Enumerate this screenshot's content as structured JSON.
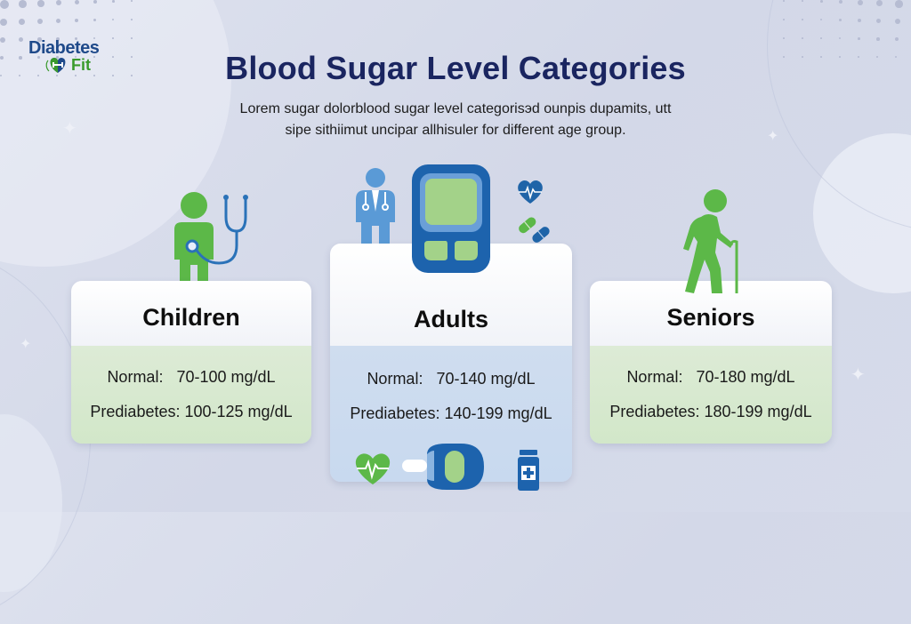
{
  "brand": {
    "logo_top": "Diabetes",
    "logo_bottom": "Fit",
    "colors": {
      "navy": "#1f4a8a",
      "green": "#3a9a2c"
    }
  },
  "header": {
    "title": "Blood Sugar Level Categories",
    "subtitle_line1": "Lorem sugar dolorblood sugar level categorisэd ounpis dupamits, utt",
    "subtitle_line2": "sipe sithiimut uncipar allhisuler for different age group."
  },
  "categories": [
    {
      "name": "Children",
      "normal_label": "Normal:",
      "normal_value": "70-100 mg/dL",
      "prediabetes_label": "Prediabetes:",
      "prediabetes_value": "100-125 mg/dL",
      "icon": "child-with-stethoscope-icon",
      "accent": "#d4e8cb"
    },
    {
      "name": "Adults",
      "normal_label": "Normal:",
      "normal_value": "70-140 mg/dL",
      "prediabetes_label": "Prediabetes:",
      "prediabetes_value": "140-199 mg/dL",
      "icon": "glucose-meter-icon",
      "accent": "#cbdbef"
    },
    {
      "name": "Seniors",
      "normal_label": "Normal:",
      "normal_value": "70-180 mg/dL",
      "prediabetes_label": "Prediabetes:",
      "prediabetes_value": "180-199 mg/dL",
      "icon": "senior-with-cane-icon",
      "accent": "#d4e8cb"
    }
  ],
  "decor_icons": [
    "doctor-icon",
    "heart-pulse-icon",
    "pills-icon",
    "glucose-meter-icon",
    "lancet-device-icon",
    "medicine-bottle-icon"
  ]
}
